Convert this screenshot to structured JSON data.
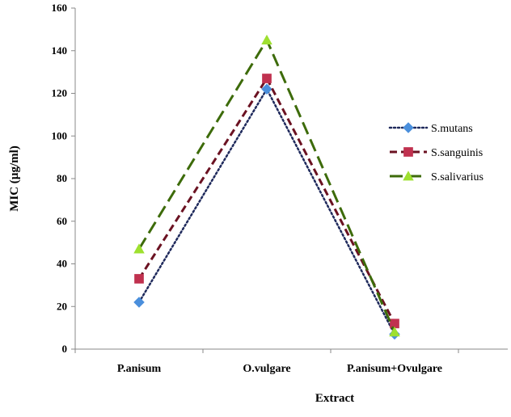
{
  "chart_data": {
    "type": "line",
    "categories": [
      "P.anisum",
      "O.vulgare",
      "P.anisum+Ovulgare"
    ],
    "xlabel": "Extract",
    "ylabel": "MIC (µg/ml)",
    "ylim": [
      0,
      160
    ],
    "yticks": [
      0,
      20,
      40,
      60,
      80,
      100,
      120,
      140,
      160
    ],
    "grid": false,
    "legend_position": "right",
    "series": [
      {
        "name": "S.mutans",
        "values": [
          22,
          122,
          7
        ],
        "color": "#4a8fdc",
        "marker": "diamond",
        "line_style": "dotted",
        "line_color": "#1f2a5c"
      },
      {
        "name": "S.sanguinis",
        "values": [
          33,
          127,
          12
        ],
        "color": "#c0314f",
        "marker": "square",
        "line_style": "dashed",
        "line_color": "#6b1222"
      },
      {
        "name": "S.salivarius",
        "values": [
          47,
          145,
          8
        ],
        "color": "#9ee02f",
        "marker": "triangle",
        "line_style": "long-dashed",
        "line_color": "#3d6b0a"
      }
    ]
  }
}
